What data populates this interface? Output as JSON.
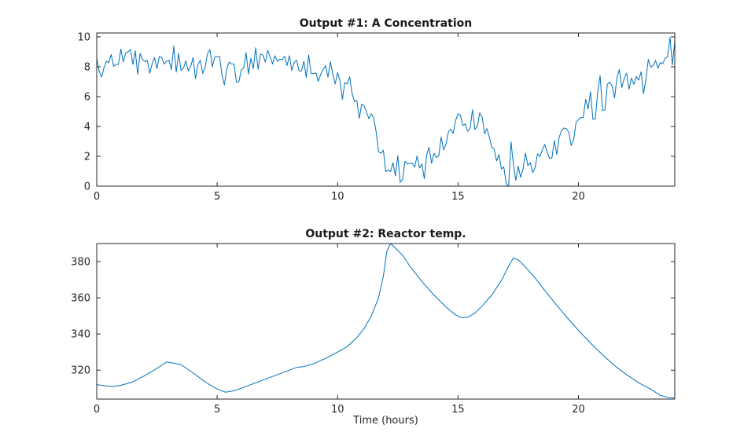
{
  "figure": {
    "background": "#ffffff",
    "axis_color": "#262626",
    "line_color": "#0072BD"
  },
  "chart_data": [
    {
      "type": "line",
      "title": "Output #1: A Concentration",
      "xlabel": "",
      "ylabel": "",
      "xlim": [
        0,
        24
      ],
      "ylim": [
        0,
        10.26
      ],
      "xticks": [
        0,
        5,
        10,
        15,
        20
      ],
      "yticks": [
        0,
        2,
        4,
        6,
        8,
        10
      ],
      "grid": false,
      "legend": "none",
      "series": [
        {
          "name": "A concentration",
          "color": "#0072BD",
          "trend": {
            "t": [
              0,
              0.5,
              1,
              1.5,
              2,
              2.5,
              3,
              3.5,
              4,
              4.5,
              5,
              5.5,
              6,
              6.5,
              7,
              7.5,
              8,
              8.5,
              9,
              9.5,
              10,
              10.5,
              11,
              11.5,
              12,
              12.5,
              13,
              13.5,
              14,
              14.5,
              15,
              15.5,
              16,
              16.5,
              17,
              17.5,
              18,
              18.5,
              19,
              19.5,
              20,
              20.5,
              21,
              21.5,
              22,
              22.5,
              23,
              23.5,
              24
            ],
            "y": [
              8.5,
              8.3,
              8.2,
              8.3,
              8.1,
              8.0,
              8.4,
              7.9,
              8.1,
              8.2,
              8.3,
              7.9,
              7.8,
              8.2,
              8.4,
              8.5,
              8.3,
              8.2,
              8.1,
              7.7,
              7.3,
              6.6,
              5.6,
              3.9,
              1.6,
              1.0,
              0.8,
              1.6,
              2.1,
              3.3,
              4.3,
              4.2,
              4.4,
              2.9,
              0.9,
              1.3,
              1.5,
              2.0,
              2.9,
              3.6,
              4.3,
              5.0,
              5.9,
              6.6,
              7.0,
              7.6,
              8.4,
              8.9,
              9.3
            ]
          },
          "noise": {
            "std": 0.6,
            "dt": 0.1,
            "seed": 5,
            "clip_min": 0,
            "clip_max": 10.26
          }
        }
      ]
    },
    {
      "type": "line",
      "title": "Output #2: Reactor temp.",
      "xlabel": "Time (hours)",
      "ylabel": "",
      "xlim": [
        0,
        24
      ],
      "ylim": [
        304,
        390
      ],
      "xticks": [
        0,
        5,
        10,
        15,
        20
      ],
      "yticks": [
        320,
        340,
        360,
        380
      ],
      "grid": false,
      "legend": "none",
      "series": [
        {
          "name": "Reactor temperature",
          "color": "#0072BD",
          "t": [
            0,
            0.3,
            0.7,
            1,
            1.5,
            2,
            2.5,
            2.9,
            3.2,
            3.5,
            4,
            4.5,
            5,
            5.35,
            5.7,
            6,
            6.5,
            7,
            7.5,
            8,
            8.3,
            8.6,
            9,
            9.5,
            10,
            10.4,
            10.8,
            11.1,
            11.4,
            11.7,
            11.9,
            12.05,
            12.2,
            12.4,
            12.7,
            13,
            13.5,
            14,
            14.5,
            14.9,
            15.15,
            15.4,
            15.7,
            16,
            16.4,
            16.8,
            17.1,
            17.3,
            17.5,
            17.8,
            18.2,
            18.6,
            19,
            19.5,
            20,
            20.5,
            21,
            21.5,
            22,
            22.5,
            23,
            23.4,
            23.7,
            24
          ],
          "y": [
            312,
            311.4,
            311,
            311.6,
            313.5,
            317,
            321,
            324.5,
            323.8,
            323,
            318.5,
            313.5,
            309.5,
            307.8,
            308.6,
            310,
            312.5,
            315,
            317.5,
            320,
            321.5,
            322,
            323.5,
            326.5,
            330,
            333,
            338,
            343,
            350,
            360,
            372,
            386,
            390,
            387.5,
            383.5,
            377.5,
            369,
            361.5,
            355,
            350.5,
            349,
            349.3,
            351.5,
            355.5,
            361.5,
            369.5,
            377.5,
            382,
            381,
            377,
            371,
            364,
            357.5,
            349.5,
            342,
            335,
            328.5,
            322.5,
            317.5,
            313,
            309.5,
            306,
            305,
            304.6
          ]
        }
      ]
    }
  ]
}
